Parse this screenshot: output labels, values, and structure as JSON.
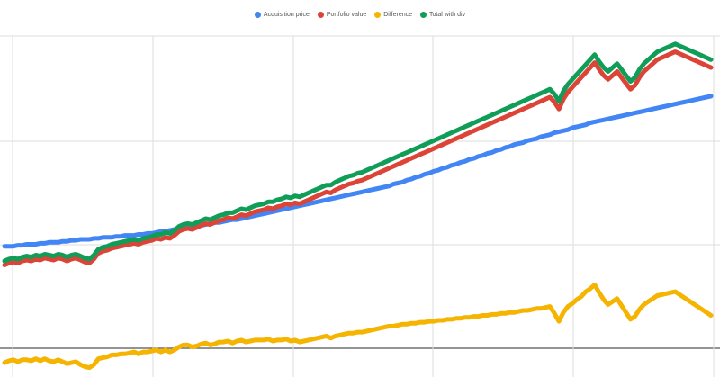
{
  "chart_data": {
    "type": "line",
    "title": "",
    "xlabel": "",
    "ylabel": "",
    "grid": true,
    "legend_position": "top-center",
    "x": [
      0,
      1,
      2,
      3,
      4,
      5,
      6,
      7,
      8,
      9,
      10,
      11,
      12,
      13,
      14,
      15,
      16,
      17,
      18,
      19,
      20,
      21,
      22,
      23,
      24,
      25,
      26,
      27,
      28,
      29,
      30,
      31,
      32,
      33,
      34,
      35,
      36,
      37,
      38,
      39,
      40,
      41,
      42,
      43,
      44,
      45,
      46,
      47,
      48,
      49,
      50,
      51,
      52,
      53,
      54,
      55,
      56,
      57,
      58,
      59,
      60,
      61,
      62,
      63,
      64,
      65,
      66,
      67,
      68,
      69,
      70,
      71,
      72,
      73,
      74,
      75,
      76,
      77,
      78,
      79,
      80,
      81,
      82,
      83,
      84,
      85,
      86,
      87,
      88,
      89,
      90,
      91,
      92,
      93,
      94,
      95,
      96,
      97,
      98,
      99,
      100,
      101,
      102,
      103,
      104,
      105,
      106,
      107,
      108,
      109,
      110,
      111,
      112,
      113,
      114,
      115,
      116,
      117,
      118,
      119,
      120,
      121,
      122,
      123,
      124,
      125,
      126,
      127,
      128,
      129,
      130,
      131,
      132,
      133,
      134,
      135,
      136,
      137,
      138,
      139,
      140,
      141,
      142,
      143,
      144,
      145,
      146,
      147,
      148,
      149,
      150,
      151,
      152,
      153,
      154,
      155,
      156,
      157,
      158
    ],
    "ylim": [
      -28,
      312
    ],
    "series": [
      {
        "name": "Acquisition price",
        "color": "#4285f4",
        "values": [
          99,
          99,
          99,
          100,
          100,
          101,
          101,
          101,
          102,
          102,
          103,
          103,
          103,
          104,
          104,
          105,
          105,
          106,
          106,
          106,
          107,
          107,
          108,
          108,
          108,
          109,
          109,
          110,
          110,
          110,
          111,
          111,
          112,
          112,
          113,
          114,
          114,
          115,
          116,
          117,
          117,
          118,
          119,
          120,
          120,
          121,
          122,
          123,
          123,
          124,
          125,
          126,
          126,
          127,
          128,
          129,
          130,
          131,
          132,
          133,
          134,
          135,
          136,
          137,
          138,
          139,
          140,
          141,
          142,
          143,
          144,
          145,
          146,
          147,
          148,
          149,
          150,
          151,
          152,
          153,
          154,
          155,
          156,
          157,
          158,
          159,
          160,
          162,
          163,
          164,
          166,
          167,
          169,
          170,
          172,
          173,
          175,
          176,
          178,
          179,
          181,
          182,
          184,
          185,
          187,
          188,
          190,
          191,
          193,
          194,
          196,
          197,
          199,
          200,
          202,
          203,
          204,
          206,
          207,
          208,
          210,
          211,
          212,
          214,
          215,
          216,
          217,
          219,
          220,
          221,
          222,
          224,
          225,
          226,
          227,
          228,
          229,
          230,
          231,
          232,
          233,
          234,
          235,
          236,
          237,
          238,
          239,
          240,
          241,
          242,
          243,
          244,
          245,
          246,
          247,
          248,
          249,
          250,
          251
        ]
      },
      {
        "name": "Portfolio value",
        "color": "#db4437",
        "values": [
          80,
          82,
          83,
          82,
          84,
          85,
          84,
          86,
          85,
          87,
          86,
          85,
          87,
          86,
          84,
          86,
          87,
          85,
          83,
          82,
          86,
          92,
          94,
          95,
          97,
          98,
          99,
          100,
          101,
          102,
          101,
          103,
          104,
          105,
          107,
          106,
          108,
          107,
          110,
          114,
          116,
          117,
          116,
          118,
          120,
          122,
          121,
          123,
          125,
          126,
          128,
          127,
          129,
          131,
          130,
          132,
          134,
          135,
          136,
          138,
          137,
          139,
          140,
          142,
          141,
          143,
          142,
          144,
          146,
          148,
          150,
          152,
          154,
          153,
          156,
          158,
          160,
          162,
          163,
          165,
          166,
          168,
          170,
          172,
          174,
          176,
          178,
          180,
          182,
          184,
          186,
          188,
          190,
          192,
          194,
          196,
          198,
          200,
          202,
          204,
          206,
          208,
          210,
          212,
          214,
          216,
          218,
          220,
          222,
          224,
          226,
          228,
          230,
          232,
          234,
          236,
          238,
          240,
          242,
          244,
          246,
          248,
          250,
          245,
          238,
          248,
          255,
          260,
          265,
          270,
          275,
          280,
          285,
          278,
          272,
          268,
          272,
          276,
          270,
          264,
          258,
          262,
          270,
          276,
          280,
          284,
          288,
          290,
          292,
          294,
          296,
          294,
          292,
          290,
          288,
          286,
          284,
          282,
          280
        ]
      },
      {
        "name": "Difference",
        "color": "#f4b400",
        "values": [
          -19,
          -17,
          -16,
          -18,
          -16,
          -16,
          -17,
          -15,
          -17,
          -15,
          -17,
          -18,
          -16,
          -18,
          -20,
          -19,
          -18,
          -21,
          -23,
          -24,
          -21,
          -15,
          -14,
          -13,
          -11,
          -11,
          -10,
          -10,
          -9,
          -8,
          -10,
          -8,
          -8,
          -7,
          -6,
          -8,
          -6,
          -8,
          -6,
          -3,
          -1,
          -1,
          -3,
          -2,
          0,
          1,
          -1,
          0,
          2,
          2,
          3,
          1,
          3,
          4,
          2,
          3,
          4,
          4,
          4,
          5,
          3,
          4,
          4,
          5,
          3,
          4,
          2,
          3,
          4,
          5,
          6,
          7,
          8,
          6,
          8,
          9,
          10,
          11,
          11,
          12,
          12,
          13,
          14,
          15,
          16,
          17,
          18,
          18,
          19,
          20,
          20,
          21,
          21,
          22,
          22,
          23,
          23,
          24,
          24,
          25,
          25,
          26,
          26,
          27,
          27,
          28,
          28,
          29,
          29,
          30,
          30,
          31,
          31,
          32,
          32,
          33,
          34,
          34,
          35,
          36,
          36,
          37,
          38,
          31,
          23,
          32,
          38,
          41,
          45,
          48,
          53,
          56,
          60,
          52,
          45,
          40,
          43,
          46,
          39,
          32,
          25,
          28,
          35,
          40,
          43,
          46,
          49,
          50,
          51,
          52,
          53,
          50,
          47,
          44,
          41,
          38,
          35,
          32,
          29
        ]
      },
      {
        "name": "Total with div",
        "color": "#0f9d58",
        "values": [
          84,
          86,
          87,
          86,
          88,
          89,
          88,
          90,
          89,
          91,
          90,
          89,
          91,
          90,
          88,
          90,
          91,
          89,
          87,
          86,
          90,
          96,
          98,
          99,
          101,
          102,
          103,
          104,
          105,
          106,
          105,
          107,
          108,
          109,
          111,
          111,
          113,
          112,
          115,
          119,
          121,
          122,
          121,
          123,
          125,
          127,
          126,
          128,
          130,
          131,
          133,
          133,
          135,
          137,
          136,
          138,
          140,
          141,
          142,
          144,
          144,
          146,
          147,
          149,
          148,
          150,
          149,
          151,
          153,
          155,
          157,
          159,
          161,
          161,
          164,
          166,
          168,
          170,
          171,
          173,
          174,
          176,
          178,
          180,
          182,
          184,
          186,
          188,
          190,
          192,
          194,
          196,
          198,
          200,
          202,
          204,
          206,
          208,
          210,
          212,
          214,
          216,
          218,
          220,
          222,
          224,
          226,
          228,
          230,
          232,
          234,
          236,
          238,
          240,
          242,
          244,
          246,
          248,
          250,
          252,
          254,
          256,
          258,
          253,
          246,
          256,
          263,
          268,
          273,
          278,
          283,
          288,
          293,
          286,
          280,
          276,
          280,
          284,
          278,
          272,
          266,
          270,
          278,
          284,
          288,
          292,
          296,
          298,
          300,
          302,
          304,
          302,
          300,
          298,
          296,
          294,
          292,
          290,
          288
        ]
      }
    ]
  }
}
